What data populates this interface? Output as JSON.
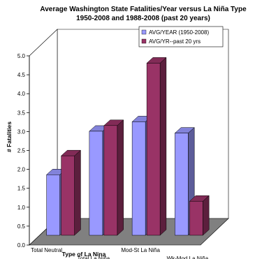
{
  "chart_data": {
    "type": "bar",
    "title": "Average Washington State Fatalities/Year versus La Niña Type",
    "subtitle": "1950-2008 and 1988-2008 (past 20 years)",
    "xlabel": "Type of La Nina",
    "ylabel": "# Fatalities",
    "categories": [
      "Total Neutral",
      "Total La Niña",
      "Mod-St La Niña",
      "Wk-Mod La Niña"
    ],
    "series": [
      {
        "name": "AVG/YEAR (1950-2008)",
        "color": "#9999ff",
        "values": [
          1.6,
          2.75,
          3.0,
          2.7
        ]
      },
      {
        "name": "AVG/YR--past 20 yrs",
        "color": "#993366",
        "values": [
          2.1,
          2.9,
          4.55,
          0.9
        ]
      }
    ],
    "ylim": [
      0,
      5.0
    ],
    "yticks": [
      "0.0",
      "0.5",
      "1.0",
      "1.5",
      "2.0",
      "2.5",
      "3.0",
      "3.5",
      "4.0",
      "4.5",
      "5.0"
    ],
    "grid": false,
    "legend": "top-right",
    "style": "3d-clustered-column"
  }
}
